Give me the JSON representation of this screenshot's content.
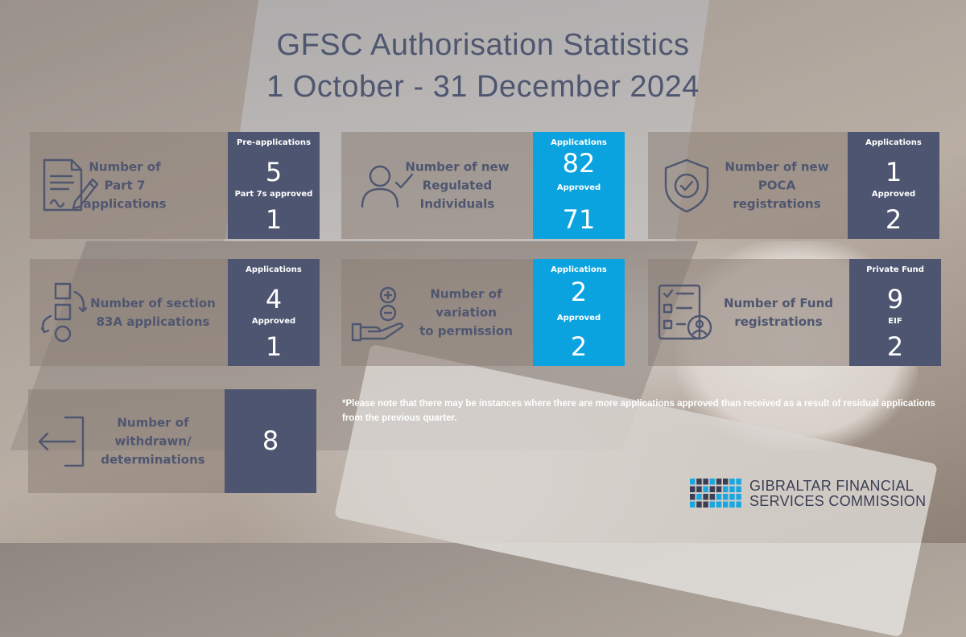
{
  "title": {
    "line1": "GFSC Authorisation Statistics",
    "line2": "1 October - 31 December 2024"
  },
  "cards": [
    {
      "id": "part7",
      "label": "Number of Part 7 applications",
      "label_lines": [
        "Number of",
        "Part 7 applications"
      ],
      "icon": "document-pen-icon",
      "stat1_label": "Pre-applications",
      "stat1_value": "5",
      "stat2_label": "Part 7s approved",
      "stat2_value": "1"
    },
    {
      "id": "regulated",
      "label_lines": [
        "Number of new",
        "Regulated",
        "Individuals"
      ],
      "icon": "person-check-icon",
      "stat1_label": "Applications",
      "stat1_value": "82",
      "stat2_label": "Approved",
      "stat2_value": "71"
    },
    {
      "id": "poca",
      "label_lines": [
        "Number of new",
        "POCA",
        "registrations"
      ],
      "icon": "shield-check-icon",
      "stat1_label": "Applications",
      "stat1_value": "1",
      "stat2_label": "Approved",
      "stat2_value": "2"
    },
    {
      "id": "s83a",
      "label_lines": [
        "Number of section",
        "83A applications"
      ],
      "icon": "shapes-cycle-icon",
      "stat1_label": "Applications",
      "stat1_value": "4",
      "stat2_label": "Approved",
      "stat2_value": "1"
    },
    {
      "id": "vop",
      "label_lines": [
        "Number of",
        "variation",
        "to permission"
      ],
      "icon": "hand-plus-minus-icon",
      "stat1_label": "Applications",
      "stat1_value": "2",
      "stat2_label": "Approved",
      "stat2_value": "2"
    },
    {
      "id": "fund",
      "label_lines": [
        "Number of Fund",
        "registrations"
      ],
      "icon": "checklist-person-icon",
      "stat1_label": "Private Fund",
      "stat1_value": "9",
      "stat2_label": "EIF",
      "stat2_value": "2"
    },
    {
      "id": "withdrawn",
      "label_lines": [
        "Number of",
        "withdrawn/",
        "determinations"
      ],
      "icon": "exit-arrow-icon",
      "stat_value": "8"
    }
  ],
  "note": "*Please note that there may be instances where there are more applications approved than received as a result of residual applications from the previous quarter.",
  "logo": {
    "line1": "GIBRALTAR FINANCIAL",
    "line2": "SERVICES COMMISSION"
  },
  "colors": {
    "navy": "#4d5570",
    "blue": "#0aa3e0",
    "title": "#4f5670"
  }
}
